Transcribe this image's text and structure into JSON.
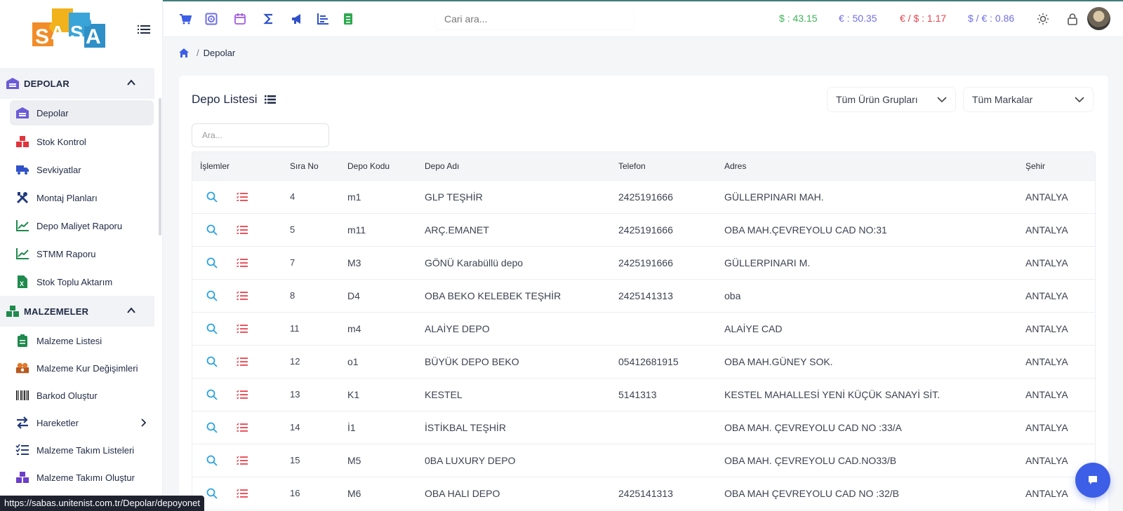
{
  "sidebar": {
    "sections": [
      {
        "label": "DEPOLAR",
        "icon": "warehouse-icon"
      },
      {
        "label": "MALZEMELER",
        "icon": "boxes-icon"
      }
    ],
    "items": [
      {
        "label": "Depolar",
        "icon": "warehouse-icon",
        "active": true
      },
      {
        "label": "Stok Kontrol",
        "icon": "stock-boxes-icon"
      },
      {
        "label": "Sevkiyatlar",
        "icon": "truck-icon"
      },
      {
        "label": "Montaj Planları",
        "icon": "tools-icon"
      },
      {
        "label": "Depo Maliyet Raporu",
        "icon": "line-chart-icon"
      },
      {
        "label": "STMM Raporu",
        "icon": "line-chart-icon"
      },
      {
        "label": "Stok Toplu Aktarım",
        "icon": "excel-file-icon"
      },
      {
        "label": "Malzeme Listesi",
        "icon": "clipboard-list-icon"
      },
      {
        "label": "Malzeme Kur Değişimleri",
        "icon": "currency-exchange-icon"
      },
      {
        "label": "Barkod Oluştur",
        "icon": "barcode-icon"
      },
      {
        "label": "Hareketler",
        "icon": "swap-arrows-icon"
      },
      {
        "label": "Malzeme Takım Listeleri",
        "icon": "checklist-icon"
      },
      {
        "label": "Malzeme Takımı Oluştur",
        "icon": "package-add-icon"
      }
    ]
  },
  "topbar": {
    "search_placeholder": "Cari ara...",
    "rates": [
      {
        "label": "$ : 43.15",
        "color": "#3cb558"
      },
      {
        "label": "€ : 50.35",
        "color": "#6f6ee6"
      },
      {
        "label": "€ / $ : 1.17",
        "color": "#e8434e"
      },
      {
        "label": "$ / € : 0.86",
        "color": "#6f6ee6"
      }
    ],
    "icons": [
      "cart-icon",
      "safe-icon",
      "calendar-icon",
      "sigma-icon",
      "megaphone-icon",
      "bar-chart-icon",
      "document-icon",
      "sun-icon",
      "lock-icon"
    ]
  },
  "breadcrumb": {
    "current": "Depolar",
    "separator": "/"
  },
  "card": {
    "title": "Depo Listesi",
    "filter_groups": "Tüm Ürün Grupları",
    "filter_brands": "Tüm Markalar",
    "search_placeholder": "Ara..."
  },
  "table": {
    "headers": [
      "İşlemler",
      "Sıra No",
      "Depo Kodu",
      "Depo Adı",
      "Telefon",
      "Adres",
      "Şehir"
    ],
    "rows": [
      {
        "no": "4",
        "code": "m1",
        "name": "GLP TEŞHİR",
        "phone": "2425191666",
        "address": "GÜLLERPINARI MAH.",
        "city": "ANTALYA"
      },
      {
        "no": "5",
        "code": "m11",
        "name": "ARÇ.EMANET",
        "phone": "2425191666",
        "address": "OBA MAH.ÇEVREYOLU CAD NO:31",
        "city": "ANTALYA"
      },
      {
        "no": "7",
        "code": "M3",
        "name": "GÖNÜ Karabüllü depo",
        "phone": "2425191666",
        "address": "GÜLLERPINARI M.",
        "city": "ANTALYA"
      },
      {
        "no": "8",
        "code": "D4",
        "name": "OBA BEKO KELEBEK TEŞHİR",
        "phone": "2425141313",
        "address": "oba",
        "city": "ANTALYA"
      },
      {
        "no": "11",
        "code": "m4",
        "name": "ALAİYE DEPO",
        "phone": "",
        "address": "ALAİYE CAD",
        "city": "ANTALYA"
      },
      {
        "no": "12",
        "code": "o1",
        "name": "BÜYÜK DEPO BEKO",
        "phone": "05412681915",
        "address": "OBA MAH.GÜNEY SOK.",
        "city": "ANTALYA"
      },
      {
        "no": "13",
        "code": "K1",
        "name": "KESTEL",
        "phone": "5141313",
        "address": "KESTEL MAHALLESİ YENİ KÜÇÜK SANAYİ SİT.",
        "city": "ANTALYA"
      },
      {
        "no": "14",
        "code": "İ1",
        "name": "İSTİKBAL TEŞHİR",
        "phone": "",
        "address": "OBA MAH. ÇEVREYOLU CAD NO :33/A",
        "city": "ANTALYA"
      },
      {
        "no": "15",
        "code": "M5",
        "name": "0BA LUXURY DEPO",
        "phone": "",
        "address": "OBA MAH. ÇEVREYOLU CAD.NO33/B",
        "city": "ANTALYA"
      },
      {
        "no": "16",
        "code": "M6",
        "name": "OBA HALI DEPO",
        "phone": "2425141313",
        "address": "OBA MAH ÇEVREYOLU CAD NO :32/B",
        "city": "ANTALYA"
      }
    ]
  },
  "status_url": "https://sabas.unitenist.com.tr/Depolar/depoyonet"
}
